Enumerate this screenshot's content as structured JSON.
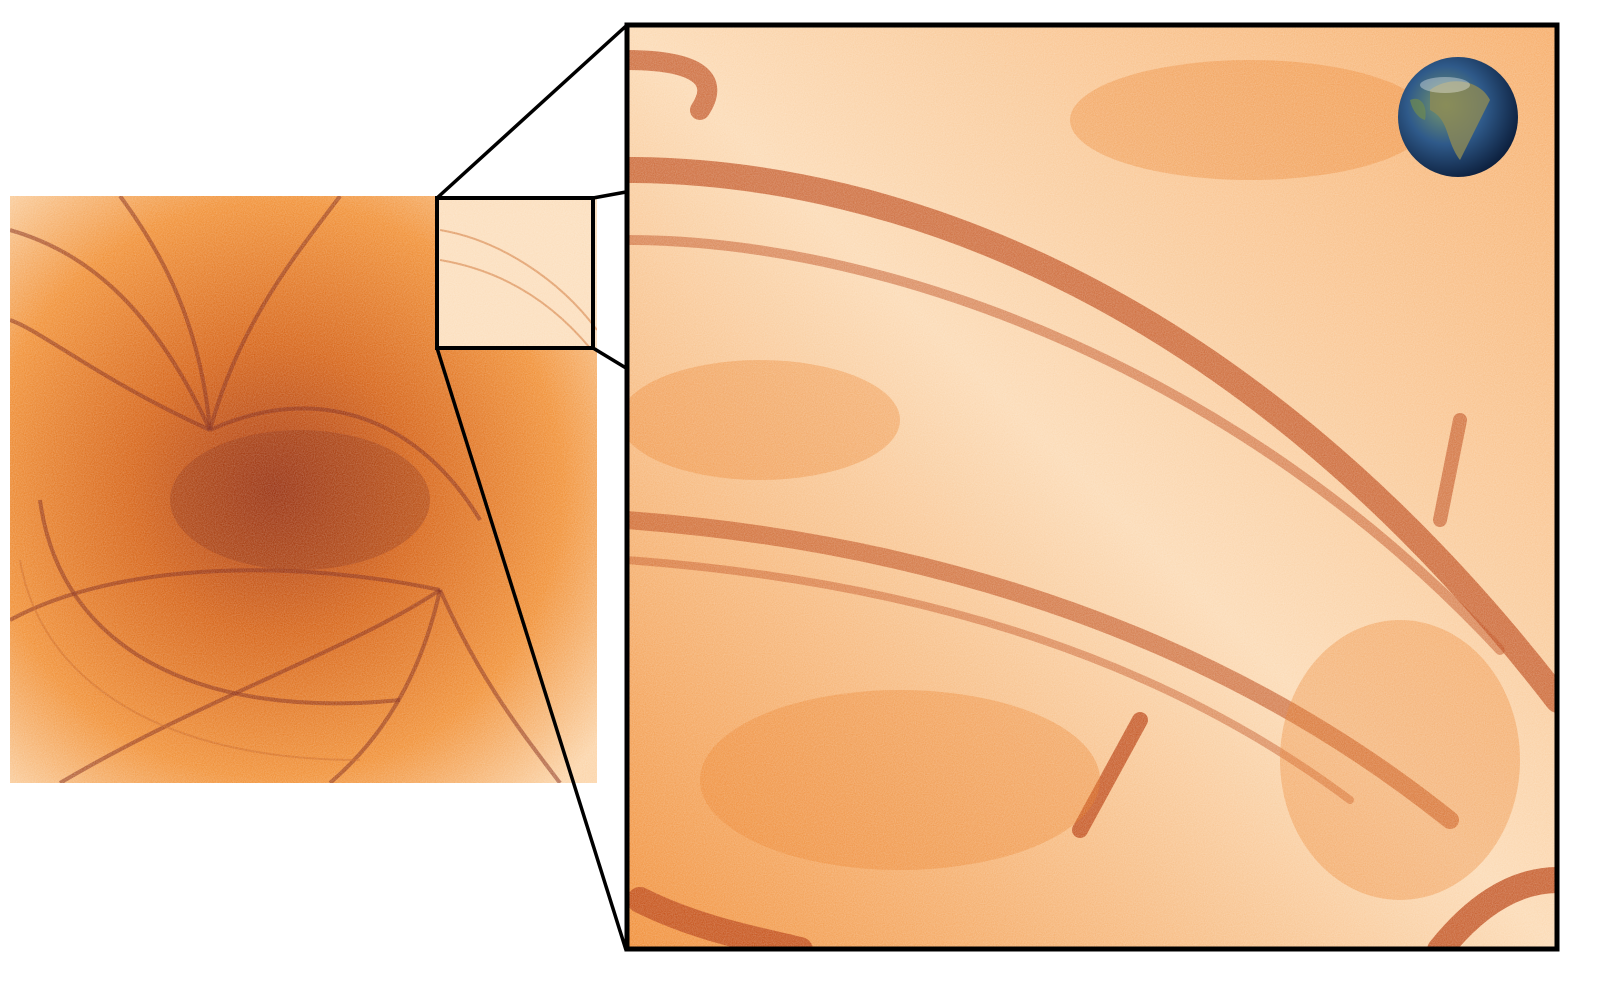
{
  "colors": {
    "dark": "#8a1a00",
    "mid": "#e8700f",
    "light": "#fde9d0",
    "frame": "#000000"
  },
  "icons": {
    "earth": "earth-globe-icon"
  }
}
